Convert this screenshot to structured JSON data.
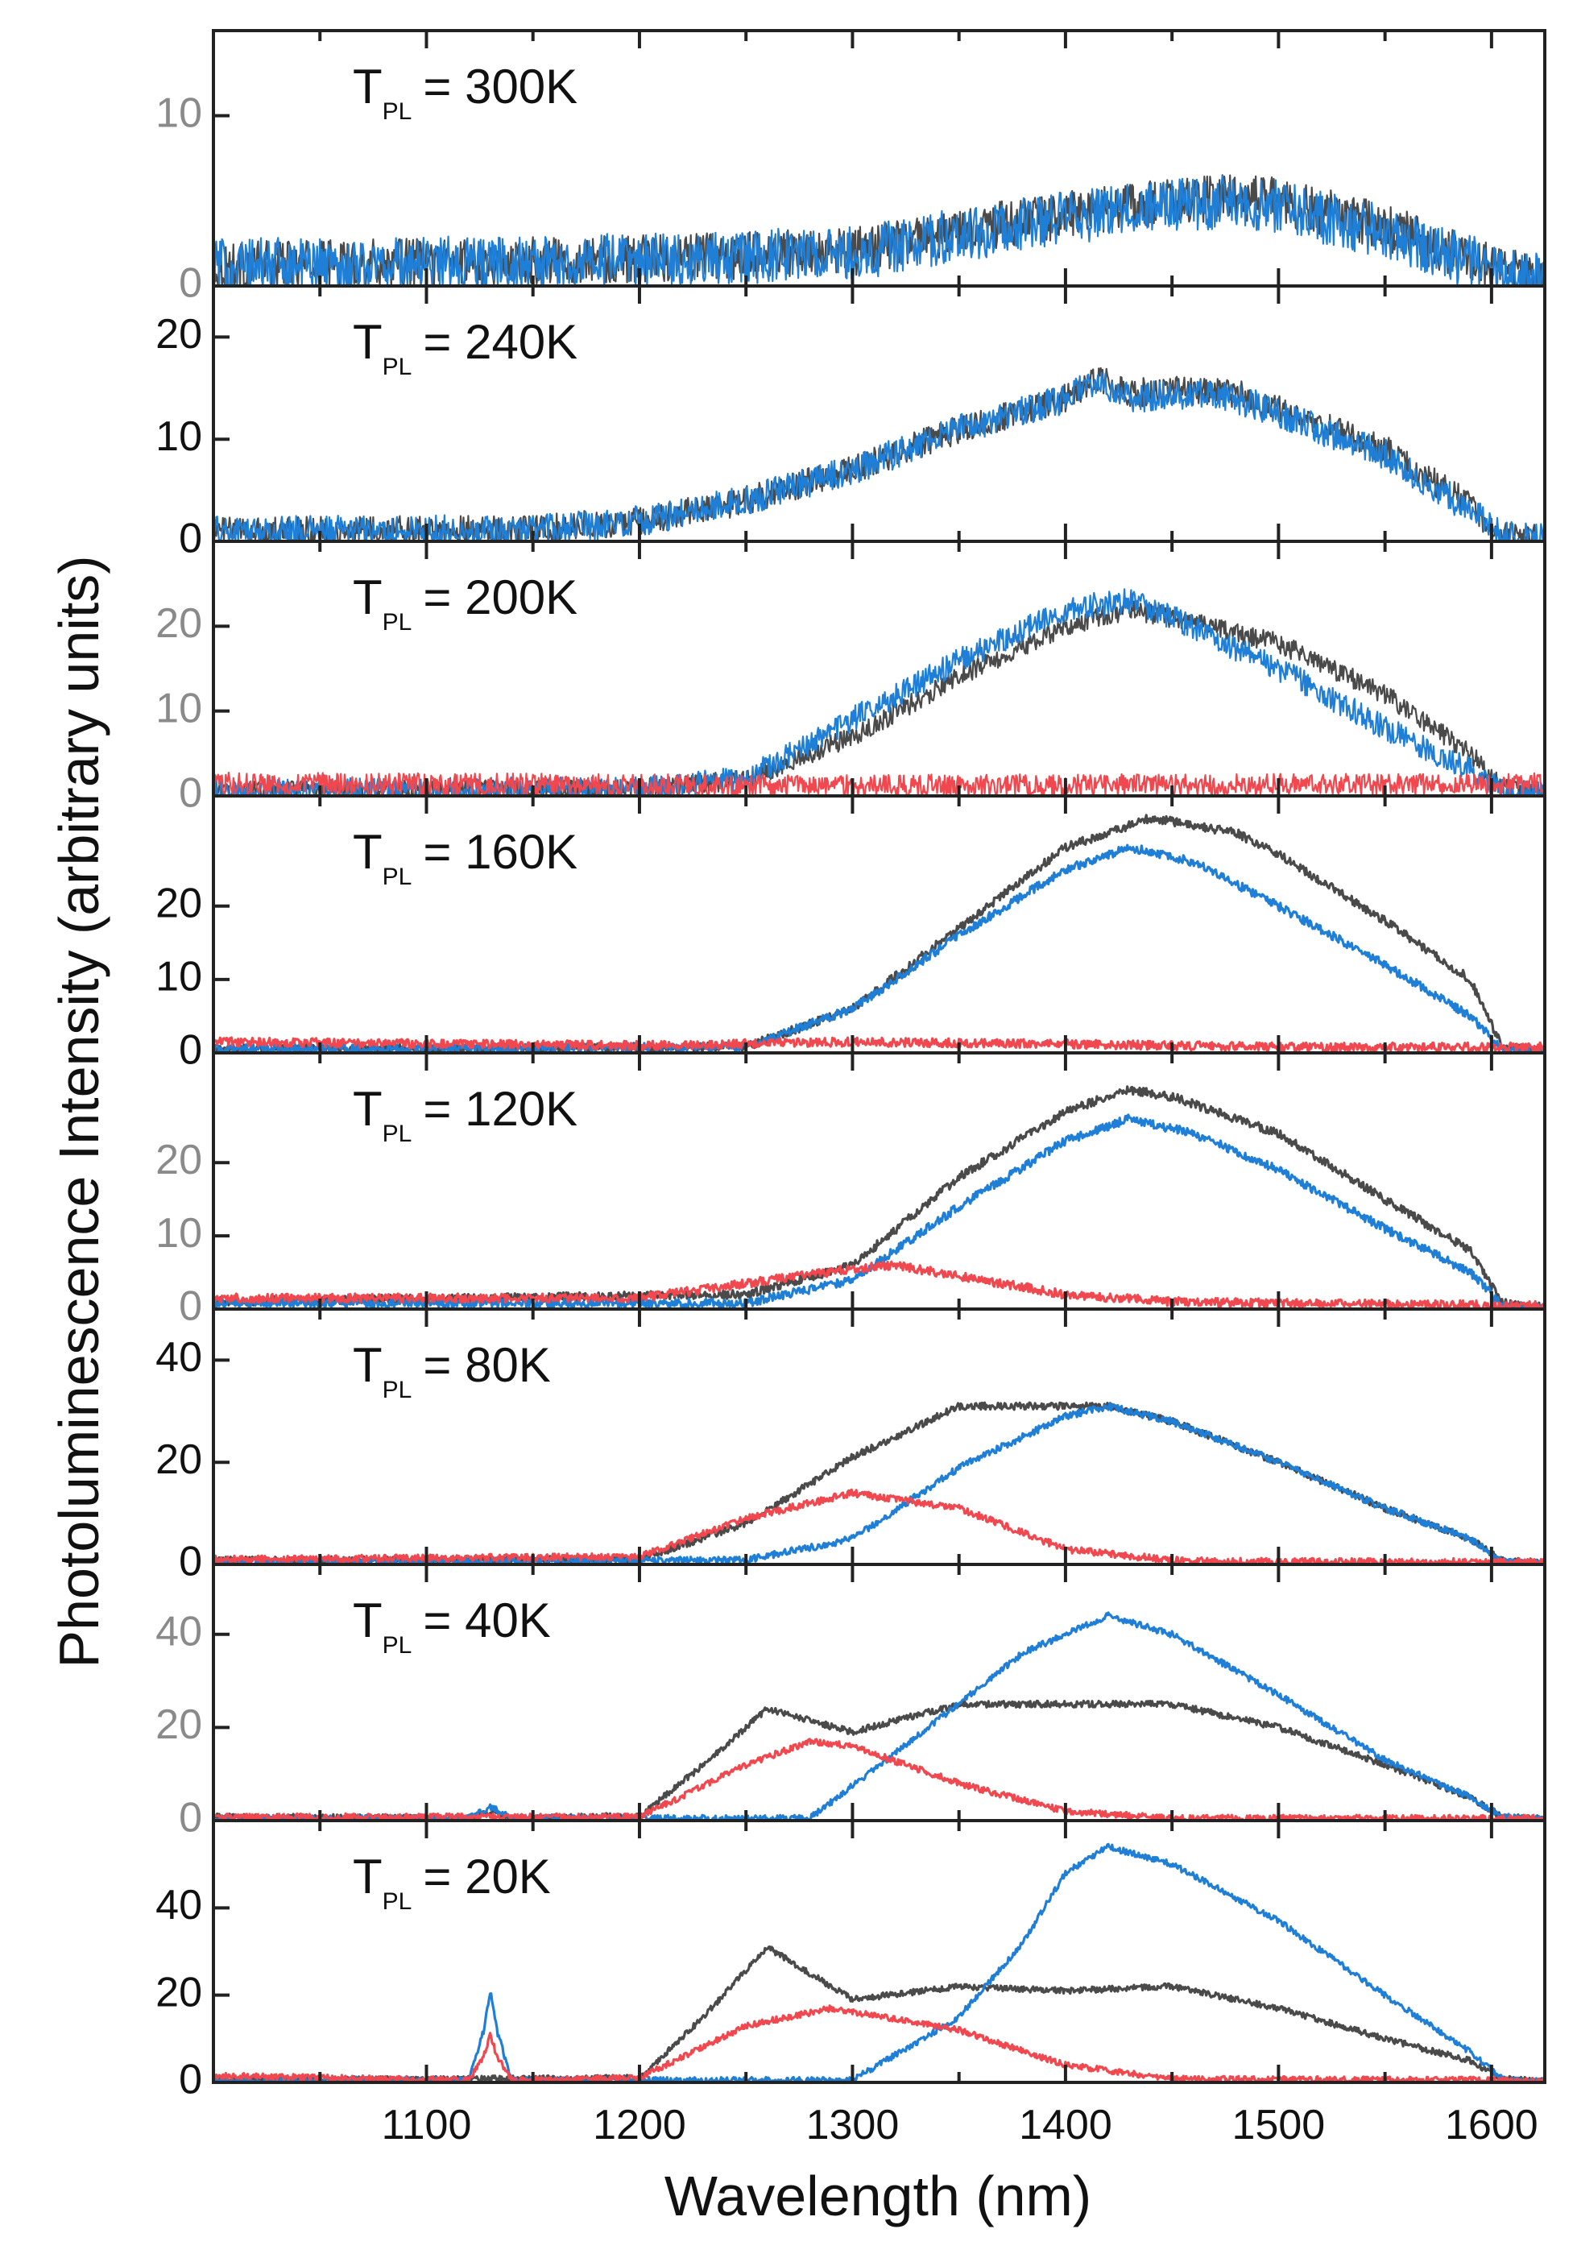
{
  "chart_data": {
    "type": "line",
    "xlabel": "Wavelength (nm)",
    "ylabel": "Photoluminescence Intensity (arbitrary units)",
    "xlim": [
      1000,
      1625
    ],
    "x_ticks": [
      1100,
      1200,
      1300,
      1400,
      1500,
      1600
    ],
    "x_tick_labels": [
      "1100",
      "1200",
      "1300",
      "1400",
      "1500",
      "1600"
    ],
    "grid": false,
    "colors": {
      "black": "#4a4a4a",
      "blue": "#1f7fd6",
      "red": "#f0484e",
      "frame": "#222222"
    },
    "panels": [
      {
        "label_main": "T",
        "label_sub": "PL",
        "label_value": "= 300K",
        "ylim": [
          0,
          15
        ],
        "yticks": [
          0,
          10
        ],
        "ytick_labels": [
          "0",
          "10"
        ],
        "tick_color": "#8a8a8a",
        "series": [
          {
            "color": "black",
            "noise": 1.4,
            "x": [
              1000,
              1100,
              1200,
              1300,
              1350,
              1400,
              1450,
              1480,
              1500,
              1550,
              1600,
              1625
            ],
            "y": [
              1.2,
              1.4,
              1.6,
              2.0,
              3.2,
              4.2,
              5.0,
              5.2,
              5.0,
              3.5,
              1.2,
              0.3
            ]
          },
          {
            "color": "blue",
            "noise": 1.6,
            "x": [
              1000,
              1100,
              1200,
              1300,
              1350,
              1400,
              1450,
              1480,
              1500,
              1550,
              1600,
              1625
            ],
            "y": [
              1.2,
              1.3,
              1.5,
              1.9,
              3.0,
              4.0,
              4.8,
              5.0,
              4.6,
              3.2,
              1.0,
              0.3
            ]
          }
        ]
      },
      {
        "label_main": "T",
        "label_sub": "PL",
        "label_value": "= 240K",
        "ylim": [
          0,
          25
        ],
        "yticks": [
          0,
          10,
          20
        ],
        "ytick_labels": [
          "0",
          "10",
          "20"
        ],
        "tick_color": "#111111",
        "series": [
          {
            "color": "black",
            "noise": 1.4,
            "x": [
              1000,
              1150,
              1200,
              1250,
              1300,
              1350,
              1400,
              1415,
              1430,
              1450,
              1480,
              1500,
              1550,
              1590,
              1605,
              1625
            ],
            "y": [
              1.0,
              1.2,
              2.0,
              4.0,
              7.0,
              11.0,
              14.0,
              16.0,
              14.5,
              14.8,
              14.5,
              13.0,
              9.0,
              3.5,
              0.5,
              0.2
            ]
          },
          {
            "color": "blue",
            "noise": 1.5,
            "x": [
              1000,
              1150,
              1200,
              1250,
              1300,
              1350,
              1400,
              1415,
              1430,
              1450,
              1480,
              1500,
              1550,
              1590,
              1605,
              1625
            ],
            "y": [
              1.0,
              1.1,
              2.0,
              4.0,
              7.0,
              11.0,
              14.0,
              16.0,
              14.0,
              14.5,
              14.0,
              12.5,
              8.5,
              3.0,
              0.5,
              0.2
            ]
          }
        ]
      },
      {
        "label_main": "T",
        "label_sub": "PL",
        "label_value": "= 200K",
        "ylim": [
          0,
          30
        ],
        "yticks": [
          0,
          10,
          20
        ],
        "ytick_labels": [
          "0",
          "10",
          "20"
        ],
        "tick_color": "#8a8a8a",
        "series": [
          {
            "color": "black",
            "noise": 1.2,
            "x": [
              1000,
              1200,
              1250,
              1300,
              1350,
              1400,
              1430,
              1450,
              1500,
              1550,
              1590,
              1605,
              1625
            ],
            "y": [
              0.5,
              0.8,
              2.0,
              7.0,
              14.0,
              20.0,
              22.0,
              21.0,
              18.0,
              12.0,
              5.0,
              0.8,
              0.3
            ]
          },
          {
            "color": "blue",
            "noise": 1.5,
            "x": [
              1000,
              1200,
              1250,
              1300,
              1350,
              1400,
              1430,
              1450,
              1500,
              1550,
              1590,
              1605,
              1625
            ],
            "y": [
              0.5,
              0.8,
              2.0,
              9.0,
              16.0,
              22.0,
              23.0,
              21.0,
              15.0,
              8.0,
              3.0,
              0.5,
              0.2
            ]
          },
          {
            "color": "red",
            "noise": 1.3,
            "x": [
              1000,
              1300,
              1625
            ],
            "y": [
              1.5,
              1.2,
              1.4
            ]
          }
        ]
      },
      {
        "label_main": "T",
        "label_sub": "PL",
        "label_value": "= 160K",
        "ylim": [
          0,
          35
        ],
        "yticks": [
          0,
          10,
          20
        ],
        "ytick_labels": [
          "0",
          "10",
          "20"
        ],
        "tick_color": "#111111",
        "series": [
          {
            "color": "black",
            "noise": 0.6,
            "x": [
              1000,
              1250,
              1300,
              1350,
              1400,
              1440,
              1480,
              1500,
              1550,
              1590,
              1605,
              1625
            ],
            "y": [
              0.5,
              0.8,
              6.0,
              17.0,
              28.0,
              32.0,
              30.0,
              27.0,
              18.0,
              10.0,
              0.8,
              0.2
            ]
          },
          {
            "color": "blue",
            "noise": 0.6,
            "x": [
              1000,
              1250,
              1300,
              1350,
              1400,
              1430,
              1460,
              1500,
              1550,
              1590,
              1605,
              1625
            ],
            "y": [
              0.5,
              0.8,
              6.0,
              16.0,
              25.0,
              28.0,
              26.0,
              20.0,
              12.0,
              5.0,
              0.5,
              0.2
            ]
          },
          {
            "color": "red",
            "noise": 0.6,
            "x": [
              1000,
              1200,
              1300,
              1400,
              1500,
              1625
            ],
            "y": [
              1.5,
              1.0,
              1.5,
              1.2,
              0.8,
              0.8
            ]
          }
        ]
      },
      {
        "label_main": "T",
        "label_sub": "PL",
        "label_value": "= 120K",
        "ylim": [
          0,
          35
        ],
        "yticks": [
          0,
          10,
          20
        ],
        "ytick_labels": [
          "0",
          "10",
          "20"
        ],
        "tick_color": "#8a8a8a",
        "series": [
          {
            "color": "black",
            "noise": 0.6,
            "x": [
              1000,
              1250,
              1300,
              1350,
              1400,
              1430,
              1450,
              1500,
              1550,
              1590,
              1605,
              1625
            ],
            "y": [
              1.0,
              2.0,
              6.0,
              18.0,
              27.0,
              30.0,
              29.0,
              24.0,
              15.0,
              8.0,
              0.8,
              0.2
            ]
          },
          {
            "color": "blue",
            "noise": 0.6,
            "x": [
              1000,
              1250,
              1300,
              1350,
              1400,
              1430,
              1460,
              1500,
              1550,
              1590,
              1605,
              1625
            ],
            "y": [
              0.8,
              0.8,
              4.0,
              14.0,
              23.0,
              26.0,
              24.0,
              19.0,
              11.0,
              5.0,
              0.5,
              0.2
            ]
          },
          {
            "color": "red",
            "noise": 0.6,
            "x": [
              1000,
              1200,
              1250,
              1300,
              1320,
              1350,
              1400,
              1450,
              1500,
              1625
            ],
            "y": [
              1.5,
              1.5,
              3.5,
              5.5,
              6.0,
              4.5,
              2.0,
              1.0,
              0.8,
              0.5
            ]
          }
        ]
      },
      {
        "label_main": "T",
        "label_sub": "PL",
        "label_value": "= 80K",
        "ylim": [
          0,
          50
        ],
        "yticks": [
          0,
          20,
          40
        ],
        "ytick_labels": [
          "0",
          "20",
          "40"
        ],
        "tick_color": "#111111",
        "series": [
          {
            "color": "black",
            "noise": 0.7,
            "x": [
              1000,
              1200,
              1250,
              1300,
              1350,
              1400,
              1420,
              1450,
              1500,
              1550,
              1590,
              1605,
              1625
            ],
            "y": [
              0.8,
              1.0,
              8.0,
              21.0,
              31.0,
              31.0,
              31.0,
              28.0,
              20.0,
              11.0,
              5.0,
              0.8,
              0.3
            ]
          },
          {
            "color": "blue",
            "noise": 0.7,
            "x": [
              1000,
              1250,
              1300,
              1350,
              1400,
              1420,
              1450,
              1500,
              1550,
              1590,
              1605,
              1625
            ],
            "y": [
              0.5,
              0.8,
              5.0,
              19.0,
              29.0,
              31.0,
              28.0,
              20.0,
              11.0,
              5.0,
              0.5,
              0.2
            ]
          },
          {
            "color": "red",
            "noise": 0.7,
            "x": [
              1000,
              1200,
              1250,
              1300,
              1350,
              1400,
              1450,
              1500,
              1625
            ],
            "y": [
              1.0,
              1.5,
              9.0,
              14.0,
              11.0,
              3.0,
              0.8,
              0.5,
              0.5
            ]
          }
        ]
      },
      {
        "label_main": "T",
        "label_sub": "PL",
        "label_value": "= 40K",
        "ylim": [
          0,
          55
        ],
        "yticks": [
          0,
          20,
          40
        ],
        "ytick_labels": [
          "0",
          "20",
          "40"
        ],
        "tick_color": "#8a8a8a",
        "series": [
          {
            "color": "black",
            "noise": 0.7,
            "x": [
              1000,
              1120,
              1130,
              1140,
              1200,
              1230,
              1260,
              1300,
              1350,
              1400,
              1450,
              1500,
              1550,
              1590,
              1605,
              1625
            ],
            "y": [
              0.8,
              0.5,
              2.0,
              0.5,
              1.0,
              12.0,
              24.0,
              19.0,
              25.0,
              25.0,
              25.0,
              20.0,
              12.0,
              5.0,
              0.8,
              0.3
            ]
          },
          {
            "color": "blue",
            "noise": 0.7,
            "x": [
              1000,
              1120,
              1130,
              1140,
              1280,
              1330,
              1380,
              1420,
              1450,
              1500,
              1550,
              1590,
              1605,
              1625
            ],
            "y": [
              0.5,
              0.5,
              3.0,
              0.5,
              0.5,
              18.0,
              36.0,
              44.0,
              40.0,
              27.0,
              13.0,
              5.0,
              0.8,
              0.2
            ]
          },
          {
            "color": "red",
            "noise": 0.7,
            "x": [
              1000,
              1200,
              1250,
              1280,
              1300,
              1350,
              1400,
              1450,
              1625
            ],
            "y": [
              0.8,
              0.8,
              12.0,
              17.0,
              16.0,
              8.0,
              2.0,
              0.5,
              0.5
            ]
          }
        ]
      },
      {
        "label_main": "T",
        "label_sub": "PL",
        "label_value": "= 20K",
        "ylim": [
          0,
          60
        ],
        "yticks": [
          0,
          20,
          40
        ],
        "ytick_labels": [
          "0",
          "20",
          "40"
        ],
        "tick_color": "#111111",
        "series": [
          {
            "color": "black",
            "noise": 0.7,
            "x": [
              1000,
              1200,
              1230,
              1260,
              1300,
              1350,
              1400,
              1450,
              1500,
              1550,
              1590,
              1605,
              1625
            ],
            "y": [
              0.5,
              1.0,
              15.0,
              31.0,
              19.0,
              22.0,
              21.0,
              22.0,
              17.0,
              10.0,
              5.0,
              0.8,
              0.3
            ]
          },
          {
            "color": "blue",
            "noise": 0.7,
            "x": [
              1000,
              1120,
              1127,
              1130,
              1133,
              1140,
              1300,
              1350,
              1380,
              1400,
              1420,
              1450,
              1500,
              1550,
              1590,
              1605,
              1625
            ],
            "y": [
              0.5,
              0.5,
              12.0,
              21.0,
              12.0,
              0.5,
              0.5,
              15.0,
              32.0,
              48.0,
              54.0,
              50.0,
              37.0,
              20.0,
              7.0,
              0.8,
              0.2
            ]
          },
          {
            "color": "red",
            "noise": 0.7,
            "x": [
              1000,
              1120,
              1127,
              1130,
              1133,
              1140,
              1200,
              1250,
              1290,
              1350,
              1400,
              1450,
              1625
            ],
            "y": [
              1.5,
              0.5,
              6.0,
              11.0,
              6.0,
              0.5,
              1.0,
              13.0,
              17.0,
              12.0,
              4.0,
              0.8,
              0.5
            ]
          }
        ]
      }
    ]
  }
}
